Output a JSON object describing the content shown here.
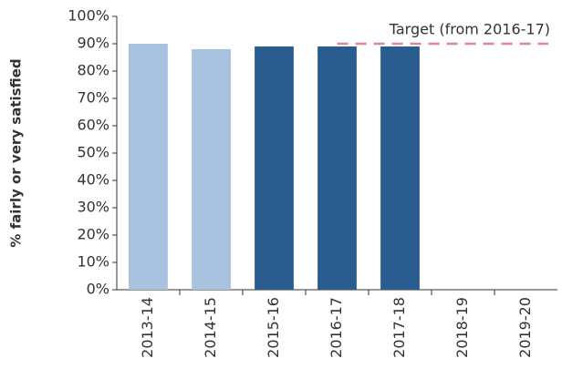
{
  "chart_data": {
    "type": "bar",
    "ylabel": "% fairly or very satisfied",
    "categories": [
      "2013-14",
      "2014-15",
      "2015-16",
      "2016-17",
      "2017-18",
      "2018-19",
      "2019-20"
    ],
    "values": [
      90,
      88,
      89,
      89,
      89,
      null,
      null
    ],
    "colors": [
      "#a7c1de",
      "#a7c1de",
      "#2a5d8f",
      "#2a5d8f",
      "#2a5d8f",
      "#2a5d8f",
      "#2a5d8f"
    ],
    "ylim": [
      0,
      100
    ],
    "yticks": [
      {
        "value": 0,
        "label": "0%"
      },
      {
        "value": 10,
        "label": "10%"
      },
      {
        "value": 20,
        "label": "20%"
      },
      {
        "value": 30,
        "label": "30%"
      },
      {
        "value": 40,
        "label": "40%"
      },
      {
        "value": 50,
        "label": "50%"
      },
      {
        "value": 60,
        "label": "60%"
      },
      {
        "value": 70,
        "label": "70%"
      },
      {
        "value": 80,
        "label": "80%"
      },
      {
        "value": 90,
        "label": "90%"
      },
      {
        "value": 100,
        "label": "100%"
      }
    ],
    "grid": false,
    "target": {
      "value": 90,
      "label": "Target (from  2016-17)",
      "color": "#e0848f"
    }
  }
}
